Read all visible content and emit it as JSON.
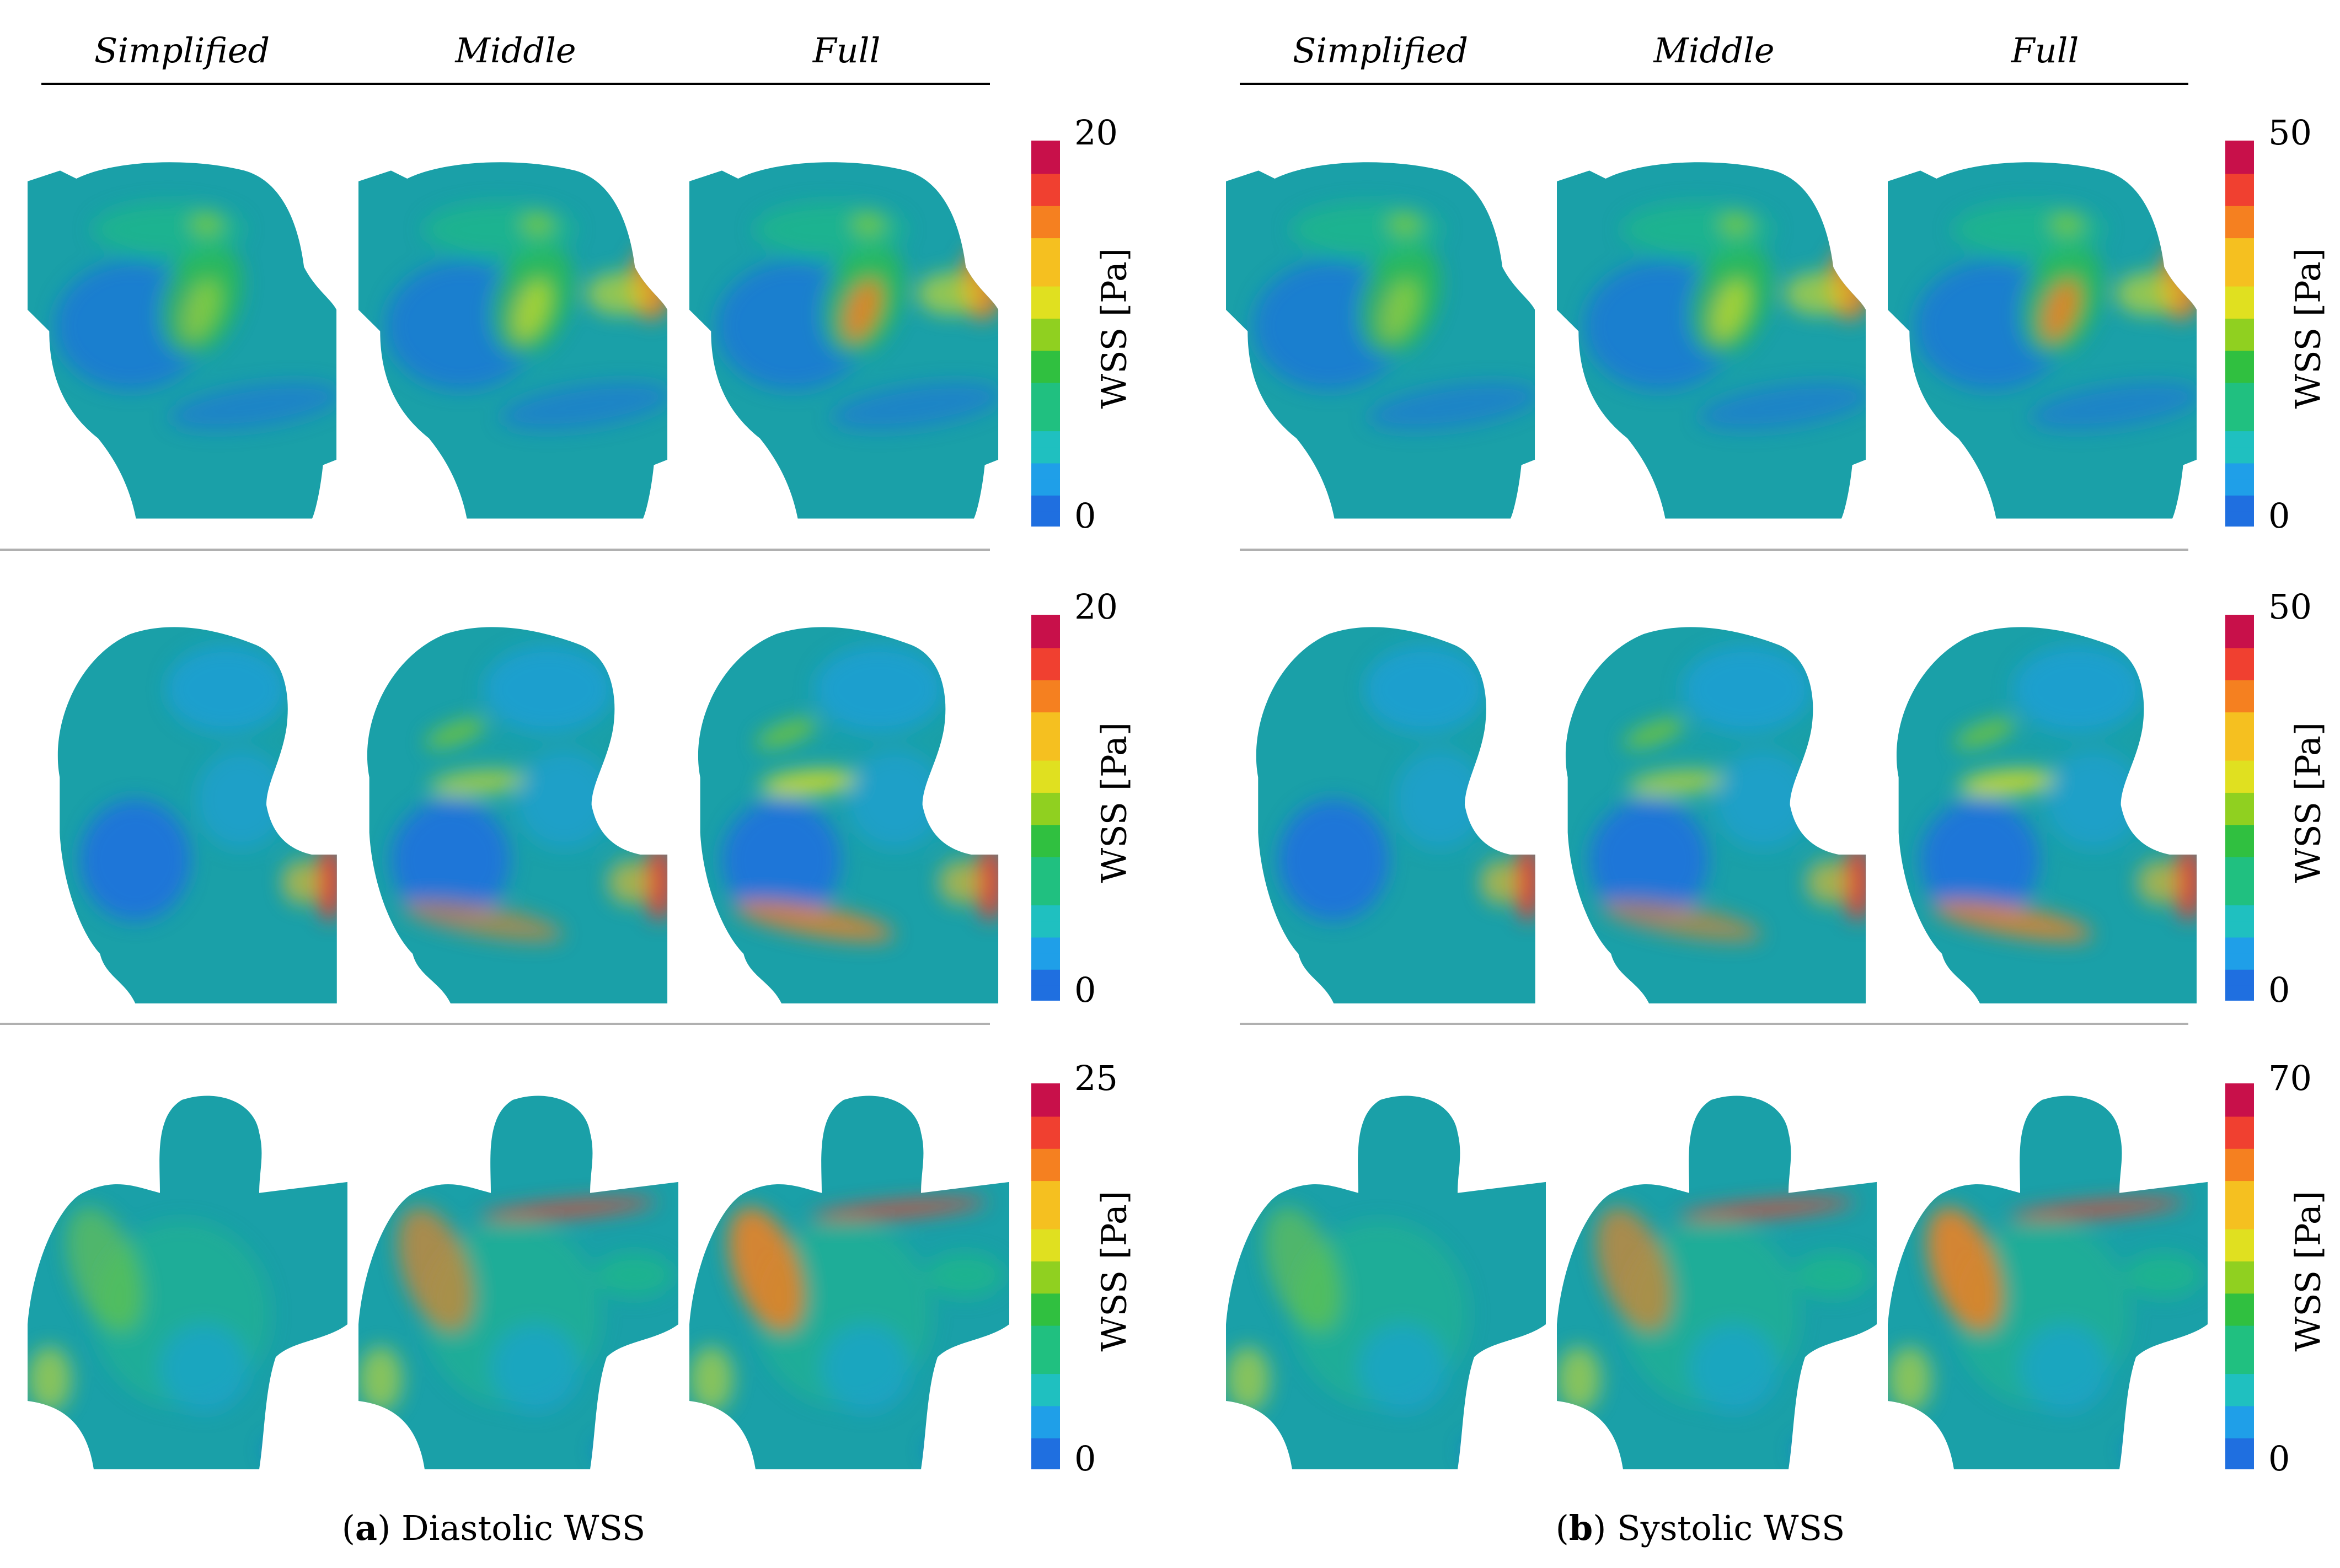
{
  "colormap": [
    "#1f6fe0",
    "#1f9fe8",
    "#1fc0c0",
    "#20c080",
    "#30c040",
    "#90d020",
    "#e0e020",
    "#f5c020",
    "#f58020",
    "#f04030",
    "#c8104a"
  ],
  "panels": [
    {
      "id": "a",
      "columns": [
        "Simplified",
        "Middle",
        "Full"
      ],
      "rows": [
        {
          "colorbar": {
            "max": "20",
            "min": "0",
            "label": "WSS [Pa]"
          }
        },
        {
          "colorbar": {
            "max": "20",
            "min": "0",
            "label": "WSS [Pa]"
          }
        },
        {
          "colorbar": {
            "max": "25",
            "min": "0",
            "label": "WSS [Pa]"
          }
        }
      ],
      "caption": {
        "tag": "a",
        "text": " Diastolic WSS"
      }
    },
    {
      "id": "b",
      "columns": [
        "Simplified",
        "Middle",
        "Full"
      ],
      "rows": [
        {
          "colorbar": {
            "max": "50",
            "min": "0",
            "label": "WSS [Pa]"
          }
        },
        {
          "colorbar": {
            "max": "50",
            "min": "0",
            "label": "WSS [Pa]"
          }
        },
        {
          "colorbar": {
            "max": "70",
            "min": "0",
            "label": "WSS [Pa]"
          }
        }
      ],
      "caption": {
        "tag": "b",
        "text": " Systolic WSS"
      }
    }
  ]
}
